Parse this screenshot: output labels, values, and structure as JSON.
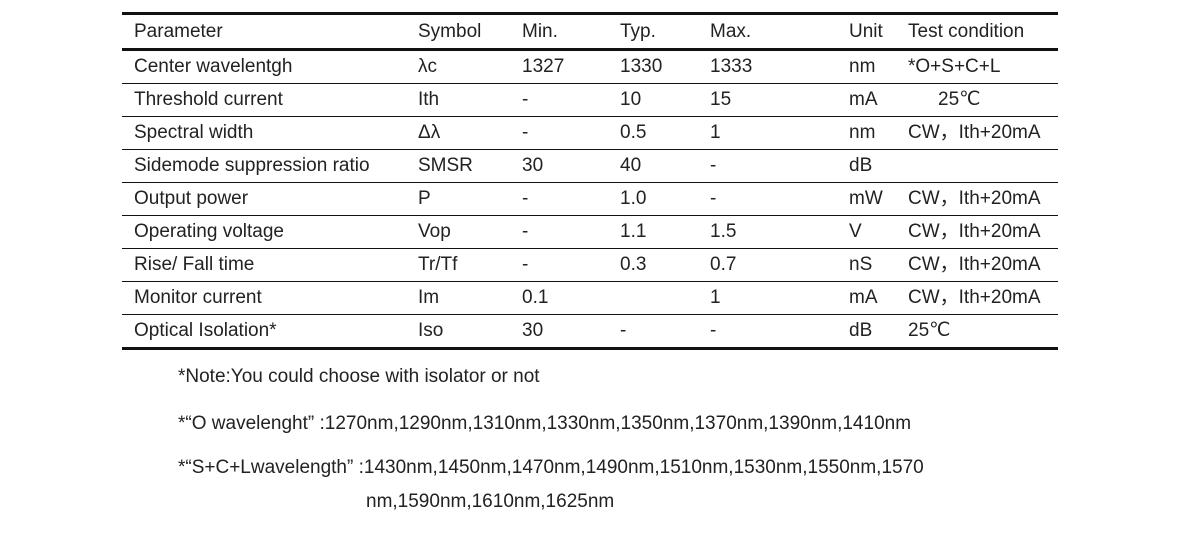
{
  "table": {
    "headers": [
      "Parameter",
      "Symbol",
      "Min.",
      "Typ.",
      "Max.",
      "Unit",
      "Test condition"
    ],
    "rows": [
      [
        "Center wavelentgh",
        "λc",
        "1327",
        "1330",
        "1333",
        "nm",
        "*O+S+C+L"
      ],
      [
        "Threshold current",
        "Ith",
        "-",
        "10",
        "15",
        "mA",
        "25℃"
      ],
      [
        "Spectral width",
        "Δλ",
        "-",
        "0.5",
        "1",
        "nm",
        "CW，Ith+20mA"
      ],
      [
        "Sidemode suppression ratio",
        "SMSR",
        "30",
        "40",
        "-",
        "dB",
        ""
      ],
      [
        "Output power",
        "P",
        "-",
        "1.0",
        "-",
        "mW",
        "CW，Ith+20mA"
      ],
      [
        "Operating voltage",
        "Vop",
        "-",
        "1.1",
        "1.5",
        "V",
        "CW，Ith+20mA"
      ],
      [
        "Rise/ Fall time",
        "Tr/Tf",
        "-",
        "0.3",
        "0.7",
        "nS",
        "CW，Ith+20mA"
      ],
      [
        "Monitor current",
        "Im",
        "0.1",
        "",
        "1",
        "mA",
        "CW，Ith+20mA"
      ],
      [
        "Optical Isolation*",
        "Iso",
        "30",
        "-",
        "-",
        "dB",
        "25℃"
      ]
    ]
  },
  "notes": {
    "isolator": "*Note:You could choose with isolator or not",
    "o_band": "*“O wavelenght” :1270nm,1290nm,1310nm,1330nm,1350nm,1370nm,1390nm,1410nm",
    "scl_band_line1": "*“S+C+Lwavelength”  :1430nm,1450nm,1470nm,1490nm,1510nm,1530nm,1550nm,1570",
    "scl_band_line2": "nm,1590nm,1610nm,1625nm"
  }
}
